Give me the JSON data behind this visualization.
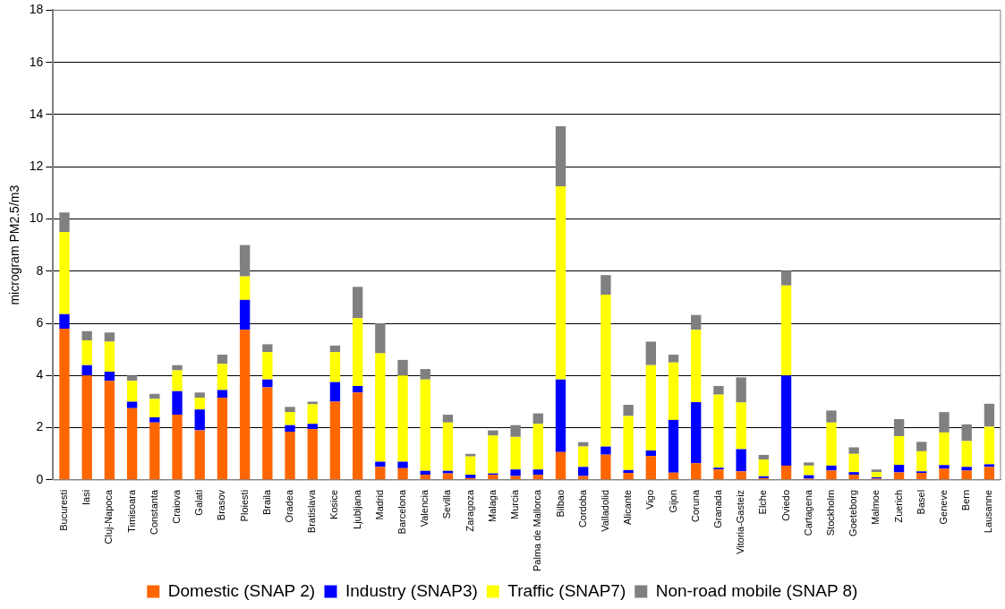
{
  "chart_data": {
    "type": "bar",
    "stacked": true,
    "ylabel": "microgram PM2.5/m3",
    "categories": [
      "Bucuresti",
      "Iasi",
      "Cluj-Napoca",
      "Timisoara",
      "Constanta",
      "Craiova",
      "Galati",
      "Brasov",
      "Ploiesti",
      "Braila",
      "Oradea",
      "Bratislava",
      "Kosice",
      "Ljubljana",
      "Madrid",
      "Barcelona",
      "Valencia",
      "Sevilla",
      "Zaragoza",
      "Malaga",
      "Murcia",
      "Palma de Mallorca",
      "Bilbao",
      "Cordoba",
      "Valladolid",
      "Alicante",
      "Vigo",
      "Gijon",
      "Coruna",
      "Granada",
      "Vitoria-Gasteiz",
      "Elche",
      "Oviedo",
      "Cartagena",
      "Stockholm",
      "Goeteborg",
      "Malmoe",
      "Zuerich",
      "Basel",
      "Geneve",
      "Bern",
      "Lausanne"
    ],
    "series": [
      {
        "name": "Domestic (SNAP 2)",
        "color": "#ff6600",
        "values": [
          5.8,
          4.0,
          3.8,
          2.75,
          2.2,
          2.5,
          1.9,
          3.15,
          5.75,
          3.55,
          1.85,
          1.95,
          3.0,
          3.35,
          0.5,
          0.45,
          0.2,
          0.25,
          0.07,
          0.2,
          0.15,
          0.2,
          1.07,
          0.15,
          0.97,
          0.27,
          0.92,
          0.28,
          0.64,
          0.4,
          0.33,
          0.07,
          0.55,
          0.05,
          0.36,
          0.2,
          0.05,
          0.29,
          0.27,
          0.43,
          0.36,
          0.5
        ]
      },
      {
        "name": "Industry (SNAP3)",
        "color": "#0000ff",
        "values": [
          0.55,
          0.4,
          0.35,
          0.25,
          0.2,
          0.9,
          0.8,
          0.3,
          1.15,
          0.3,
          0.25,
          0.2,
          0.75,
          0.25,
          0.2,
          0.25,
          0.15,
          0.1,
          0.13,
          0.05,
          0.25,
          0.2,
          2.78,
          0.35,
          0.31,
          0.11,
          0.21,
          2.02,
          2.34,
          0.07,
          0.85,
          0.07,
          3.45,
          0.13,
          0.19,
          0.1,
          0.05,
          0.29,
          0.06,
          0.14,
          0.14,
          0.1
        ]
      },
      {
        "name": "Traffic (SNAP7)",
        "color": "#ffff00",
        "values": [
          3.15,
          0.95,
          1.15,
          0.8,
          0.7,
          0.8,
          0.45,
          1.0,
          0.9,
          1.05,
          0.5,
          0.75,
          1.15,
          2.6,
          4.15,
          3.3,
          3.5,
          1.85,
          0.7,
          1.45,
          1.25,
          1.75,
          7.4,
          0.78,
          5.82,
          2.07,
          3.27,
          2.2,
          2.77,
          2.8,
          1.79,
          0.64,
          3.45,
          0.37,
          1.65,
          0.7,
          0.2,
          1.1,
          0.77,
          1.25,
          0.99,
          1.44
        ]
      },
      {
        "name": "Non-road mobile (SNAP 8)",
        "color": "#808080",
        "values": [
          0.75,
          0.35,
          0.35,
          0.2,
          0.2,
          0.2,
          0.2,
          0.35,
          1.2,
          0.3,
          0.2,
          0.1,
          0.25,
          1.2,
          1.15,
          0.6,
          0.4,
          0.3,
          0.1,
          0.2,
          0.45,
          0.4,
          2.3,
          0.17,
          0.75,
          0.43,
          0.9,
          0.3,
          0.57,
          0.33,
          0.96,
          0.18,
          0.57,
          0.12,
          0.46,
          0.25,
          0.1,
          0.65,
          0.36,
          0.78,
          0.64,
          0.88
        ]
      }
    ],
    "ylim": [
      0,
      18
    ],
    "yticks": [
      0,
      2,
      4,
      6,
      8,
      10,
      12,
      14,
      16,
      18
    ],
    "grid": "y",
    "legend": "bottom"
  }
}
